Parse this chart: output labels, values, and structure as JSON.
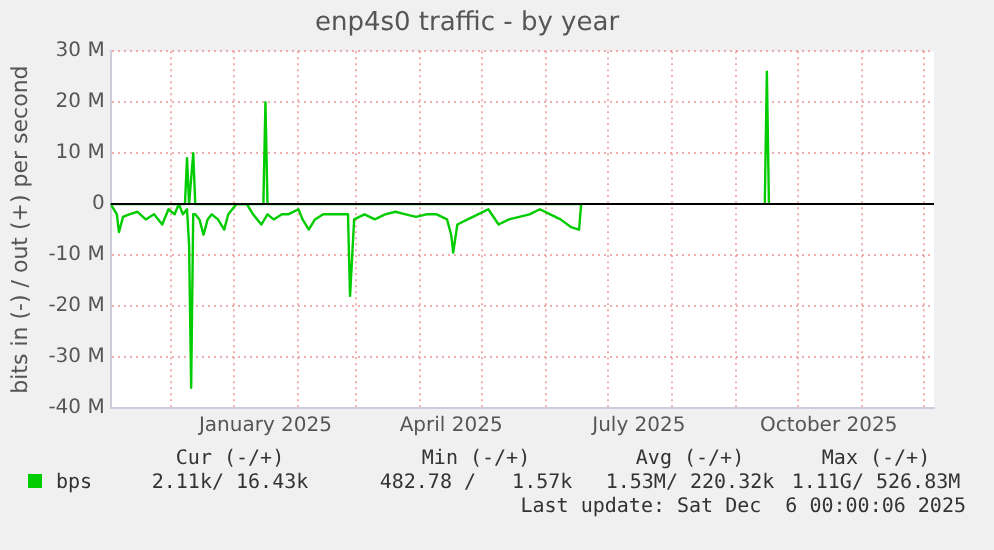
{
  "chart_data": {
    "type": "line",
    "title": "enp4s0 traffic - by year",
    "ylabel": "bits in (-) / out (+) per second",
    "xlim": [
      "2024-11-02",
      "2025-12-06"
    ],
    "xticks": [
      {
        "value": "2024-12-01",
        "label": null
      },
      {
        "value": "2025-01-01",
        "label": null
      },
      {
        "value": "2025-01-16",
        "label": "January 2025"
      },
      {
        "value": "2025-02-01",
        "label": null
      },
      {
        "value": "2025-03-01",
        "label": null
      },
      {
        "value": "2025-04-01",
        "label": null
      },
      {
        "value": "2025-04-16",
        "label": "April 2025"
      },
      {
        "value": "2025-05-01",
        "label": null
      },
      {
        "value": "2025-06-01",
        "label": null
      },
      {
        "value": "2025-07-01",
        "label": null
      },
      {
        "value": "2025-07-16",
        "label": "July 2025"
      },
      {
        "value": "2025-08-01",
        "label": null
      },
      {
        "value": "2025-09-01",
        "label": null
      },
      {
        "value": "2025-10-01",
        "label": null
      },
      {
        "value": "2025-10-16",
        "label": "October 2025"
      },
      {
        "value": "2025-11-01",
        "label": null
      },
      {
        "value": "2025-12-01",
        "label": null
      }
    ],
    "ylim": [
      -40000000,
      30000000
    ],
    "yticks": [
      {
        "value": -40000000,
        "label": "-40 M"
      },
      {
        "value": -30000000,
        "label": "-30 M"
      },
      {
        "value": -20000000,
        "label": "-20 M"
      },
      {
        "value": -10000000,
        "label": "-10 M"
      },
      {
        "value": 0,
        "label": "0"
      },
      {
        "value": 10000000,
        "label": "10 M"
      },
      {
        "value": 20000000,
        "label": "20 M"
      },
      {
        "value": 30000000,
        "label": "30 M"
      }
    ],
    "grid": true,
    "legend": "bottom left",
    "marker": "none",
    "line_style": "solid",
    "ref_lines": [
      {
        "axis": "y",
        "value": 0,
        "color": "#000000"
      }
    ],
    "series": [
      {
        "name": "bps",
        "color": "#00cc00",
        "x": [
          "2024-11-02",
          "2024-12-08",
          "2024-12-09",
          "2024-12-10",
          "2024-12-12",
          "2024-12-13",
          "2025-01-15",
          "2025-01-16",
          "2025-01-17",
          "2025-06-18",
          "2025-06-19",
          "2025-09-15",
          "2025-09-16",
          "2025-09-17"
        ],
        "values": [
          0,
          0,
          9000000,
          0,
          10000000,
          0,
          0,
          20000000,
          0,
          0,
          null,
          0,
          26000000,
          0
        ]
      },
      {
        "color": "#00cc00",
        "x": [
          "2024-11-02",
          "2024-11-05",
          "2024-11-06",
          "2024-11-08",
          "2024-11-11",
          "2024-11-15",
          "2024-11-19",
          "2024-11-23",
          "2024-11-27",
          "2024-11-30",
          "2024-12-03",
          "2024-12-05",
          "2024-12-07",
          "2024-12-09",
          "2024-12-10",
          "2024-12-11",
          "2024-12-12",
          "2024-12-13",
          "2024-12-15",
          "2024-12-17",
          "2024-12-19",
          "2024-12-21",
          "2024-12-24",
          "2024-12-27",
          "2024-12-29",
          "2025-01-02",
          "2025-01-07",
          "2025-01-10",
          "2025-01-14",
          "2025-01-17",
          "2025-01-20",
          "2025-01-24",
          "2025-01-27",
          "2025-02-01",
          "2025-02-03",
          "2025-02-06",
          "2025-02-09",
          "2025-02-13",
          "2025-02-18",
          "2025-02-23",
          "2025-02-25",
          "2025-02-26",
          "2025-02-28",
          "2025-03-05",
          "2025-03-10",
          "2025-03-15",
          "2025-03-20",
          "2025-03-25",
          "2025-03-30",
          "2025-04-04",
          "2025-04-09",
          "2025-04-14",
          "2025-04-16",
          "2025-04-17",
          "2025-04-19",
          "2025-04-24",
          "2025-04-29",
          "2025-05-04",
          "2025-05-09",
          "2025-05-14",
          "2025-05-19",
          "2025-05-24",
          "2025-05-29",
          "2025-06-03",
          "2025-06-08",
          "2025-06-13",
          "2025-06-17",
          "2025-06-18"
        ],
        "values": [
          0,
          -2000000,
          -5500000,
          -2500000,
          -2000000,
          -1500000,
          -3000000,
          -2000000,
          -4000000,
          -1000000,
          -2000000,
          0,
          -2000000,
          -1000000,
          -8000000,
          -36000000,
          -2000000,
          -2000000,
          -3000000,
          -6000000,
          -3000000,
          -2000000,
          -3000000,
          -5000000,
          -2000000,
          0,
          0,
          -2000000,
          -4000000,
          -2000000,
          -3000000,
          -2000000,
          -2000000,
          -1000000,
          -3000000,
          -5000000,
          -3000000,
          -2000000,
          -2000000,
          -2000000,
          -2000000,
          -18000000,
          -3000000,
          -2000000,
          -3000000,
          -2000000,
          -1500000,
          -2000000,
          -2500000,
          -2000000,
          -2000000,
          -3000000,
          -6000000,
          -9500000,
          -4000000,
          -3000000,
          -2000000,
          -1000000,
          -4000000,
          -3000000,
          -2500000,
          -2000000,
          -1000000,
          -2000000,
          -3000000,
          -4500000,
          -5000000,
          0
        ]
      }
    ],
    "annotations": [
      "Cur (-/+)",
      "Min (-/+)",
      "Avg (-/+)",
      "Max (-/+)",
      "2.11k/ 16.43k",
      "482.78 /   1.57k",
      "1.53M/ 220.32k",
      "1.11G/ 526.83M",
      "Last update: Sat Dec  6 00:00:06 2025"
    ]
  }
}
